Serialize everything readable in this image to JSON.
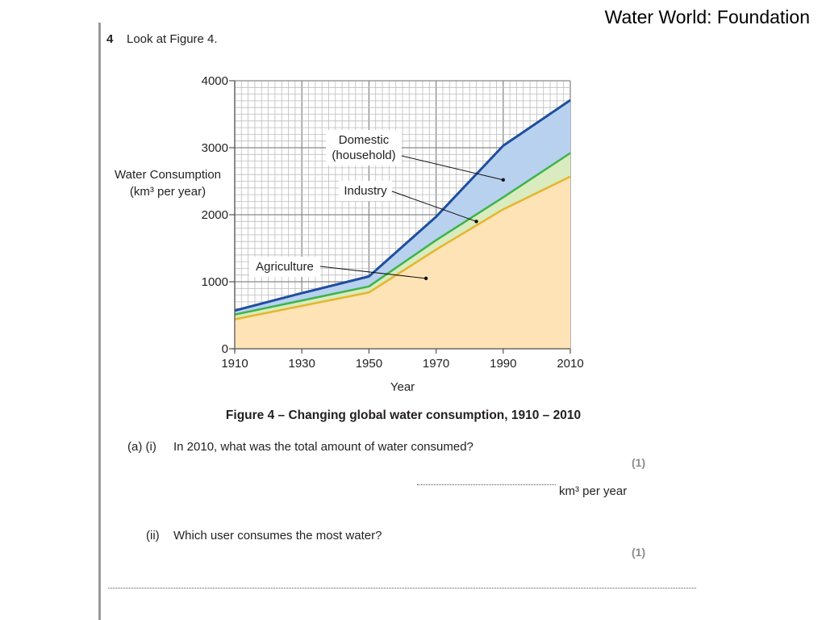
{
  "slide_title": "Water World: Foundation",
  "question": {
    "number": "4",
    "intro": "Look at Figure 4."
  },
  "figure_caption": "Figure 4 – Changing global water consumption, 1910 – 2010",
  "part_a_i": {
    "label": "(a) (i)",
    "text": "In 2010, what was the total amount of water consumed?",
    "marks": "(1)",
    "unit": "km³ per year"
  },
  "part_a_ii": {
    "label": "(ii)",
    "text": "Which user consumes the most water?",
    "marks": "(1)"
  },
  "chart_data": {
    "type": "area",
    "stacked": true,
    "xlabel": "Year",
    "ylabel": [
      "Water Consumption",
      "(km³ per year)"
    ],
    "xlim": [
      1910,
      2010
    ],
    "ylim": [
      0,
      4000
    ],
    "xticks": [
      1910,
      1930,
      1950,
      1970,
      1990,
      2010
    ],
    "yticks": [
      0,
      1000,
      2000,
      3000,
      4000
    ],
    "grid": true,
    "x": [
      1910,
      1930,
      1950,
      1970,
      1990,
      2010
    ],
    "series": [
      {
        "name": "Agriculture",
        "values": [
          440,
          640,
          840,
          1480,
          2080,
          2570
        ],
        "fill": "#fde3b6",
        "line": "#e6b52b"
      },
      {
        "name": "Industry",
        "values": [
          70,
          80,
          90,
          140,
          180,
          350
        ],
        "fill": "#d9ebbf",
        "line": "#3cb449"
      },
      {
        "name": "Domestic (household)",
        "values": [
          60,
          110,
          150,
          350,
          770,
          790
        ],
        "fill": "#b7d1ef",
        "line": "#1f4e9e"
      }
    ],
    "labels": [
      {
        "text": [
          "Domestic",
          "(household)"
        ],
        "point": [
          1990,
          2520
        ]
      },
      {
        "text": [
          "Industry"
        ],
        "point": [
          1982,
          1900
        ]
      },
      {
        "text": [
          "Agriculture"
        ],
        "point": [
          1967,
          1050
        ]
      }
    ]
  }
}
